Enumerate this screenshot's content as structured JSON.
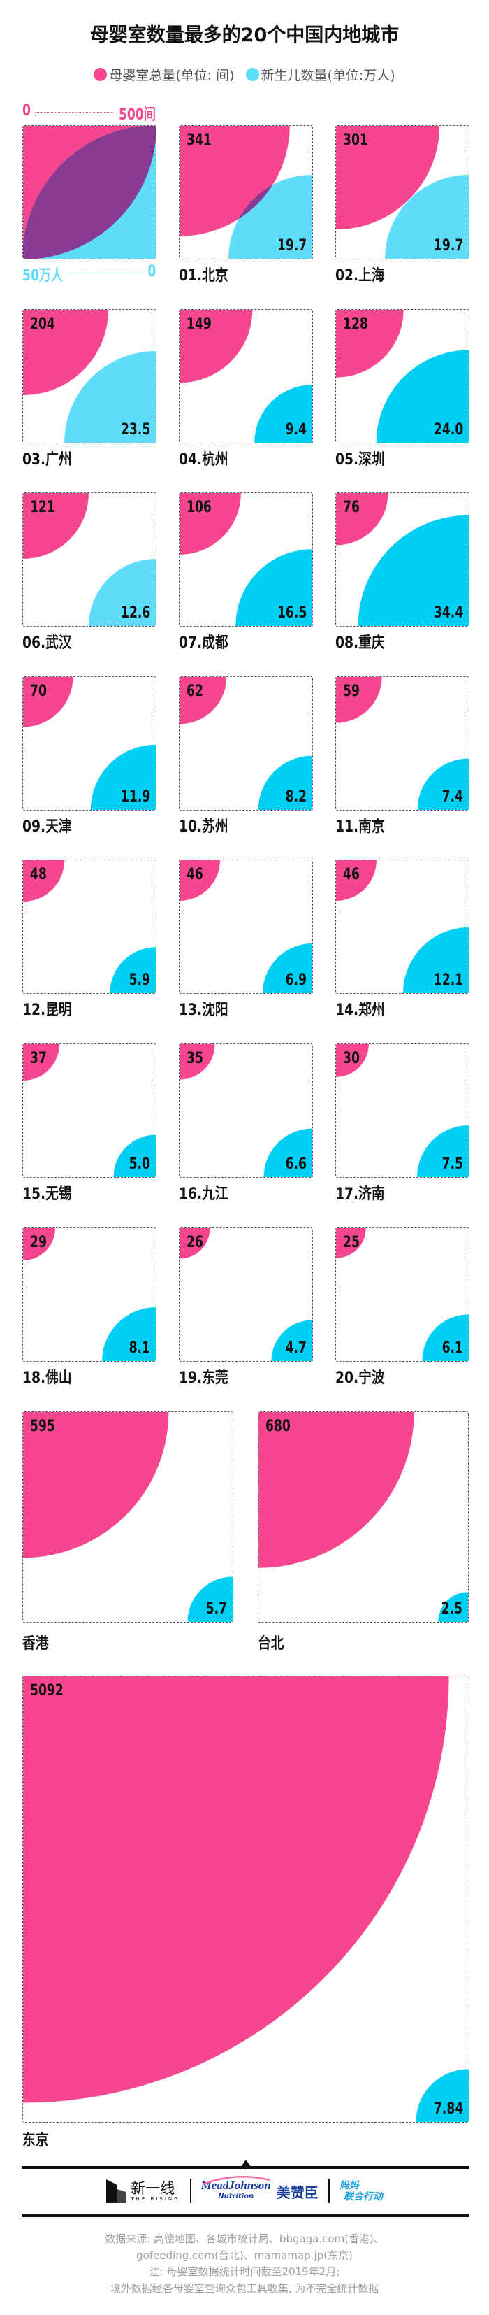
{
  "title": "母婴室数量最多的20个中国内地城市",
  "legend": {
    "rooms": "母婴室总量(单位: 间)",
    "births": "新生儿数量(单位:万人)"
  },
  "key": {
    "rooms_min": "0",
    "rooms_max": "500间",
    "births_max": "50万人",
    "births_min": "0"
  },
  "colors": {
    "rooms": "#F5468F",
    "births_light": "#5EDDFB",
    "births_dark": "#00CFF4",
    "overlap": "#893A92"
  },
  "chart_data": {
    "type": "area",
    "rooms_scale_max": 500,
    "births_scale_max": 50,
    "rooms_unit": "间",
    "births_unit": "万人",
    "cities": [
      {
        "label": "01.北京",
        "rooms": "341",
        "births": "19.7",
        "births_color": "#5EDDFB"
      },
      {
        "label": "02.上海",
        "rooms": "301",
        "births": "19.7",
        "births_color": "#5EDDFB"
      },
      {
        "label": "03.广州",
        "rooms": "204",
        "births": "23.5",
        "births_color": "#5EDDFB"
      },
      {
        "label": "04.杭州",
        "rooms": "149",
        "births": "9.4",
        "births_color": "#00CFF4"
      },
      {
        "label": "05.深圳",
        "rooms": "128",
        "births": "24.0",
        "births_color": "#00CFF4"
      },
      {
        "label": "06.武汉",
        "rooms": "121",
        "births": "12.6",
        "births_color": "#5EDDFB"
      },
      {
        "label": "07.成都",
        "rooms": "106",
        "births": "16.5",
        "births_color": "#00CFF4"
      },
      {
        "label": "08.重庆",
        "rooms": "76",
        "births": "34.4",
        "births_color": "#00CFF4"
      },
      {
        "label": "09.天津",
        "rooms": "70",
        "births": "11.9",
        "births_color": "#00CFF4"
      },
      {
        "label": "10.苏州",
        "rooms": "62",
        "births": "8.2",
        "births_color": "#00CFF4"
      },
      {
        "label": "11.南京",
        "rooms": "59",
        "births": "7.4",
        "births_color": "#00CFF4"
      },
      {
        "label": "12.昆明",
        "rooms": "48",
        "births": "5.9",
        "births_color": "#00CFF4"
      },
      {
        "label": "13.沈阳",
        "rooms": "46",
        "births": "6.9",
        "births_color": "#00CFF4"
      },
      {
        "label": "14.郑州",
        "rooms": "46",
        "births": "12.1",
        "births_color": "#00CFF4"
      },
      {
        "label": "15.无锡",
        "rooms": "37",
        "births": "5.0",
        "births_color": "#00CFF4"
      },
      {
        "label": "16.九江",
        "rooms": "35",
        "births": "6.6",
        "births_color": "#00CFF4"
      },
      {
        "label": "17.济南",
        "rooms": "30",
        "births": "7.5",
        "births_color": "#00CFF4"
      },
      {
        "label": "18.佛山",
        "rooms": "29",
        "births": "8.1",
        "births_color": "#00CFF4"
      },
      {
        "label": "19.东莞",
        "rooms": "26",
        "births": "4.7",
        "births_color": "#00CFF4"
      },
      {
        "label": "20.宁波",
        "rooms": "25",
        "births": "6.1",
        "births_color": "#00CFF4"
      }
    ],
    "overseas": [
      {
        "label": "香港",
        "rooms": "595",
        "births": "5.7",
        "births_color": "#00CFF4"
      },
      {
        "label": "台北",
        "rooms": "680",
        "births": "2.5",
        "births_color": "#00CFF4"
      },
      {
        "label": "东京",
        "rooms": "5092",
        "births": "7.84",
        "births_color": "#00CFF4"
      }
    ]
  },
  "footer": {
    "logos": {
      "rising_cn": "新一线",
      "rising_en": "THE RISING",
      "mead": "MeadJohnson",
      "mead_sub": "Nutrition",
      "meizanchen": "美赞臣",
      "mama_1": "妈妈",
      "mama_2": "联合行动"
    },
    "source_lines": [
      "数据来源: 高德地图、各城市统计局、bbgaga.com(香港)、",
      "gofeeding.com(台北)、mamamap.jp(东京)",
      "注: 母婴室数据统计时间截至2019年2月;",
      "境外数据经各母婴室查询众包工具收集, 为不完全统计数据"
    ]
  }
}
